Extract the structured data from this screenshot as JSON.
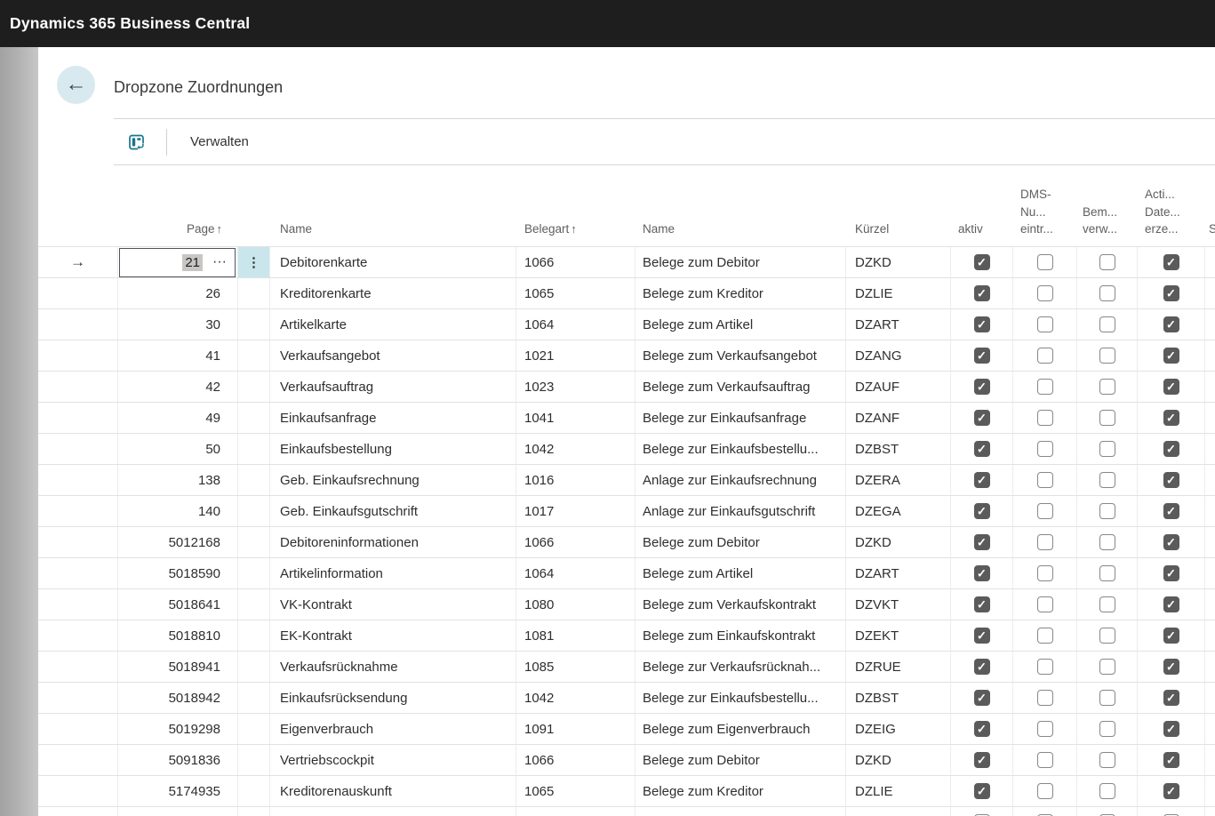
{
  "topbar": {
    "title": "Dynamics 365 Business Central"
  },
  "page": {
    "title": "Dropzone Zuordnungen"
  },
  "toolbar": {
    "menu_label": "Verwalten"
  },
  "icons": {
    "back": "←",
    "sort_ascending": "↑",
    "row_arrow": "→",
    "assist_edit": "···",
    "kebab": "⋮",
    "check": "✓"
  },
  "colors": {
    "topbar_bg": "#1f1e1e",
    "accent_teal": "#17758a",
    "back_circle": "#d9e9f0",
    "active_cell_bg": "#c9e6ec",
    "checkbox_checked": "#5b5b5b",
    "selection_highlight": "#c8c6c4"
  },
  "table": {
    "headers": {
      "page": "Page",
      "name1": "Name",
      "belegart": "Belegart",
      "name2": "Name",
      "kuerzel": "Kürzel",
      "aktiv": "aktiv",
      "dms_lines": [
        "DMS-",
        "Nu...",
        "eintr..."
      ],
      "bem_lines": [
        "Bem...",
        "verw..."
      ],
      "acti_lines": [
        "Acti...",
        "Date...",
        "erze..."
      ],
      "s": "S"
    },
    "active_row": {
      "page_value": "21"
    },
    "rows": [
      {
        "page": "21",
        "name": "Debitorenkarte",
        "belegart": "1066",
        "name2": "Belege zum Debitor",
        "kuerzel": "DZKD",
        "aktiv": true,
        "dms": false,
        "bem": false,
        "acti": true
      },
      {
        "page": "26",
        "name": "Kreditorenkarte",
        "belegart": "1065",
        "name2": "Belege zum Kreditor",
        "kuerzel": "DZLIE",
        "aktiv": true,
        "dms": false,
        "bem": false,
        "acti": true
      },
      {
        "page": "30",
        "name": "Artikelkarte",
        "belegart": "1064",
        "name2": "Belege zum Artikel",
        "kuerzel": "DZART",
        "aktiv": true,
        "dms": false,
        "bem": false,
        "acti": true
      },
      {
        "page": "41",
        "name": "Verkaufsangebot",
        "belegart": "1021",
        "name2": "Belege zum Verkaufsangebot",
        "kuerzel": "DZANG",
        "aktiv": true,
        "dms": false,
        "bem": false,
        "acti": true
      },
      {
        "page": "42",
        "name": "Verkaufsauftrag",
        "belegart": "1023",
        "name2": "Belege zum Verkaufsauftrag",
        "kuerzel": "DZAUF",
        "aktiv": true,
        "dms": false,
        "bem": false,
        "acti": true
      },
      {
        "page": "49",
        "name": "Einkaufsanfrage",
        "belegart": "1041",
        "name2": "Belege zur Einkaufsanfrage",
        "kuerzel": "DZANF",
        "aktiv": true,
        "dms": false,
        "bem": false,
        "acti": true
      },
      {
        "page": "50",
        "name": "Einkaufsbestellung",
        "belegart": "1042",
        "name2": "Belege zur Einkaufsbestellu...",
        "kuerzel": "DZBST",
        "aktiv": true,
        "dms": false,
        "bem": false,
        "acti": true
      },
      {
        "page": "138",
        "name": "Geb. Einkaufsrechnung",
        "belegart": "1016",
        "name2": "Anlage zur Einkaufsrechnung",
        "kuerzel": "DZERA",
        "aktiv": true,
        "dms": false,
        "bem": false,
        "acti": true
      },
      {
        "page": "140",
        "name": "Geb. Einkaufsgutschrift",
        "belegart": "1017",
        "name2": "Anlage zur Einkaufsgutschrift",
        "kuerzel": "DZEGA",
        "aktiv": true,
        "dms": false,
        "bem": false,
        "acti": true
      },
      {
        "page": "5012168",
        "name": "Debitoreninformationen",
        "belegart": "1066",
        "name2": "Belege zum Debitor",
        "kuerzel": "DZKD",
        "aktiv": true,
        "dms": false,
        "bem": false,
        "acti": true
      },
      {
        "page": "5018590",
        "name": "Artikelinformation",
        "belegart": "1064",
        "name2": "Belege zum Artikel",
        "kuerzel": "DZART",
        "aktiv": true,
        "dms": false,
        "bem": false,
        "acti": true
      },
      {
        "page": "5018641",
        "name": "VK-Kontrakt",
        "belegart": "1080",
        "name2": "Belege zum Verkaufskontrakt",
        "kuerzel": "DZVKT",
        "aktiv": true,
        "dms": false,
        "bem": false,
        "acti": true
      },
      {
        "page": "5018810",
        "name": "EK-Kontrakt",
        "belegart": "1081",
        "name2": "Belege zum Einkaufskontrakt",
        "kuerzel": "DZEKT",
        "aktiv": true,
        "dms": false,
        "bem": false,
        "acti": true
      },
      {
        "page": "5018941",
        "name": "Verkaufsrücknahme",
        "belegart": "1085",
        "name2": "Belege zur Verkaufsrücknah...",
        "kuerzel": "DZRUE",
        "aktiv": true,
        "dms": false,
        "bem": false,
        "acti": true
      },
      {
        "page": "5018942",
        "name": "Einkaufsrücksendung",
        "belegart": "1042",
        "name2": "Belege zur Einkaufsbestellu...",
        "kuerzel": "DZBST",
        "aktiv": true,
        "dms": false,
        "bem": false,
        "acti": true
      },
      {
        "page": "5019298",
        "name": "Eigenverbrauch",
        "belegart": "1091",
        "name2": "Belege zum Eigenverbrauch",
        "kuerzel": "DZEIG",
        "aktiv": true,
        "dms": false,
        "bem": false,
        "acti": true
      },
      {
        "page": "5091836",
        "name": "Vertriebscockpit",
        "belegart": "1066",
        "name2": "Belege zum Debitor",
        "kuerzel": "DZKD",
        "aktiv": true,
        "dms": false,
        "bem": false,
        "acti": true
      },
      {
        "page": "5174935",
        "name": "Kreditorenauskunft",
        "belegart": "1065",
        "name2": "Belege zum Kreditor",
        "kuerzel": "DZLIE",
        "aktiv": true,
        "dms": false,
        "bem": false,
        "acti": true
      }
    ]
  }
}
